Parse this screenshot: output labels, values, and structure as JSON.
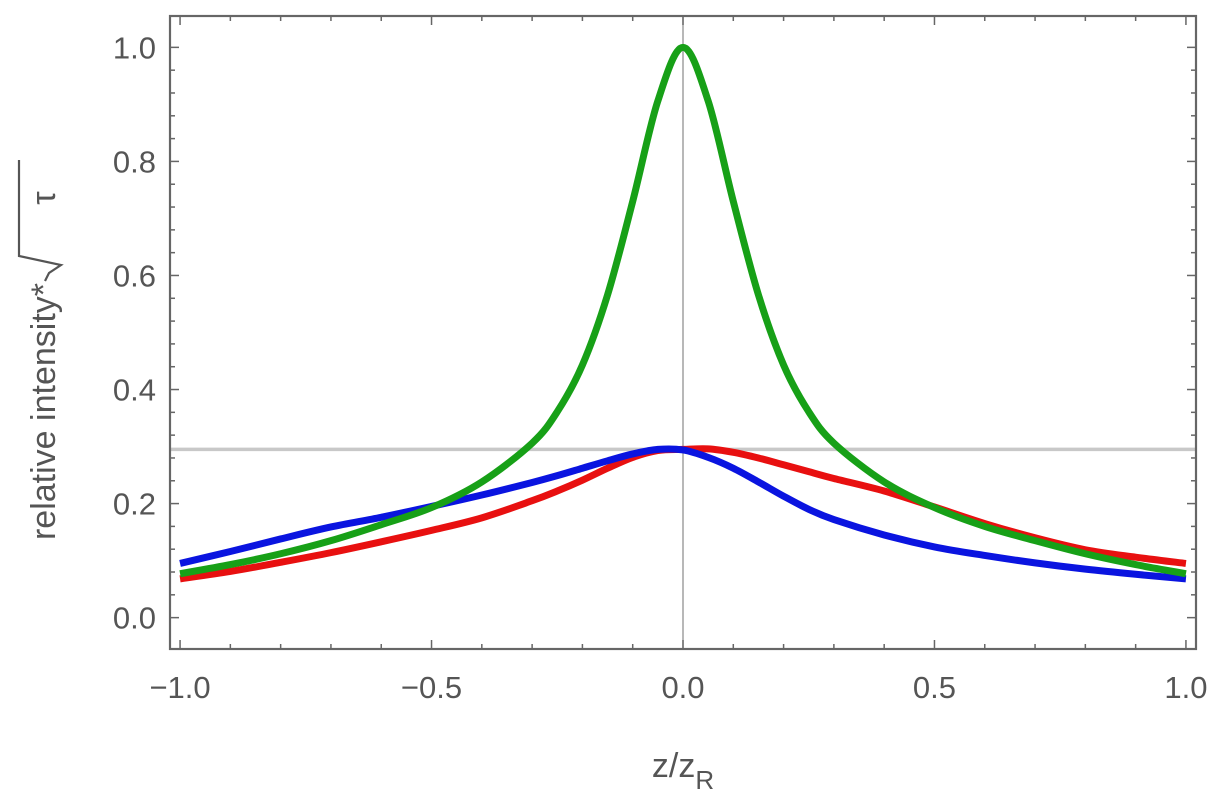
{
  "chart_data": {
    "type": "line",
    "xlabel": "z/z",
    "xlabel_subscript": "R",
    "ylabel": "relative intensity*",
    "ylabel_radicand": "τ",
    "xlim": [
      -1.02,
      1.02
    ],
    "ylim": [
      -0.055,
      1.055
    ],
    "x_ticks": [
      -1.0,
      -0.5,
      0.0,
      0.5,
      1.0
    ],
    "x_tick_labels": [
      "−1.0",
      "−0.5",
      "0.0",
      "0.5",
      "1.0"
    ],
    "y_ticks": [
      0.0,
      0.2,
      0.4,
      0.6,
      0.8,
      1.0
    ],
    "y_tick_labels": [
      "0.0",
      "0.2",
      "0.4",
      "0.6",
      "0.8",
      "1.0"
    ],
    "reference_line": {
      "y": 0.295,
      "color": "#c8c8c8"
    },
    "vertical_axis_line": {
      "x": 0.0,
      "color": "#888888"
    },
    "grid": false,
    "frame": true,
    "x": [
      -1.0,
      -0.9,
      -0.8,
      -0.7,
      -0.6,
      -0.5,
      -0.4,
      -0.3,
      -0.25,
      -0.2,
      -0.15,
      -0.1,
      -0.05,
      0.0,
      0.05,
      0.1,
      0.15,
      0.2,
      0.25,
      0.3,
      0.4,
      0.5,
      0.6,
      0.7,
      0.8,
      0.9,
      1.0
    ],
    "series": [
      {
        "color": "#e81010",
        "values": [
          0.068,
          0.081,
          0.097,
          0.114,
          0.133,
          0.153,
          0.175,
          0.205,
          0.222,
          0.241,
          0.262,
          0.281,
          0.293,
          0.295,
          0.296,
          0.29,
          0.28,
          0.268,
          0.256,
          0.244,
          0.222,
          0.194,
          0.165,
          0.14,
          0.119,
          0.106,
          0.095
        ]
      },
      {
        "color": "#0a14e0",
        "values": [
          0.095,
          0.116,
          0.138,
          0.159,
          0.176,
          0.195,
          0.215,
          0.237,
          0.249,
          0.262,
          0.275,
          0.287,
          0.295,
          0.294,
          0.281,
          0.262,
          0.238,
          0.213,
          0.19,
          0.172,
          0.145,
          0.124,
          0.109,
          0.096,
          0.085,
          0.076,
          0.068
        ]
      },
      {
        "color": "#17a017",
        "values": [
          0.077,
          0.093,
          0.112,
          0.135,
          0.163,
          0.193,
          0.238,
          0.306,
          0.361,
          0.443,
          0.566,
          0.73,
          0.906,
          1.0,
          0.906,
          0.73,
          0.566,
          0.443,
          0.361,
          0.306,
          0.238,
          0.193,
          0.16,
          0.135,
          0.112,
          0.093,
          0.077
        ]
      }
    ]
  }
}
